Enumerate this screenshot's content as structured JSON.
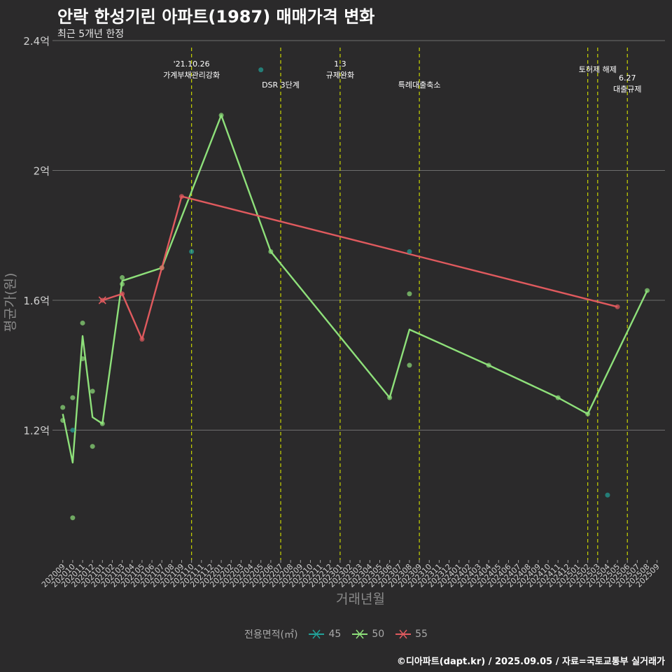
{
  "title": "안락 한성기린 아파트(1987) 매매가격 변화",
  "subtitle": "최근 5개년 한정",
  "caption": "©디아파트(dapt.kr) / 2025.09.05 / 자료=국토교통부 실거래가",
  "colors": {
    "s45": "#22a198",
    "s50": "#8ee07a",
    "s55": "#e05a5e",
    "vline": "#c8d400",
    "grid": "#6e6e6e"
  },
  "chart_data": {
    "type": "line",
    "xlabel": "거래년월",
    "ylabel": "평균가(원)",
    "ylim": [
      0.8,
      2.4
    ],
    "y_ticks": [
      {
        "value": 1.2,
        "label": "1.2억"
      },
      {
        "value": 1.6,
        "label": "1.6억"
      },
      {
        "value": 2.0,
        "label": "2억"
      },
      {
        "value": 2.4,
        "label": "2.4억"
      }
    ],
    "x_categories": [
      "202009",
      "202010",
      "202011",
      "202012",
      "202101",
      "202102",
      "202103",
      "202104",
      "202105",
      "202106",
      "202107",
      "202108",
      "202109",
      "202110",
      "202111",
      "202112",
      "202201",
      "202202",
      "202203",
      "202204",
      "202205",
      "202206",
      "202207",
      "202208",
      "202209",
      "202210",
      "202211",
      "202212",
      "202301",
      "202302",
      "202303",
      "202304",
      "202305",
      "202306",
      "202307",
      "202308",
      "202309",
      "202310",
      "202311",
      "202312",
      "202401",
      "202402",
      "202403",
      "202404",
      "202405",
      "202406",
      "202407",
      "202408",
      "202409",
      "202410",
      "202411",
      "202412",
      "202501",
      "202502",
      "202503",
      "202504",
      "202505",
      "202506",
      "202507",
      "202508",
      "202509"
    ],
    "legend_title": "전용면적(㎡)",
    "series": [
      {
        "name": "45",
        "color_key": "s45",
        "line": [],
        "points": [
          [
            "202010",
            1.2
          ],
          [
            "202110",
            1.75
          ],
          [
            "202205",
            2.31
          ],
          [
            "202308",
            1.75
          ],
          [
            "202504",
            1.0
          ]
        ]
      },
      {
        "name": "50",
        "color_key": "s50",
        "line": [
          [
            "202009",
            1.25
          ],
          [
            "202010",
            1.1
          ],
          [
            "202011",
            1.49
          ],
          [
            "202012",
            1.24
          ],
          [
            "202101",
            1.22
          ],
          [
            "202103",
            1.66
          ],
          [
            "202107",
            1.7
          ],
          [
            "202201",
            2.17
          ],
          [
            "202206",
            1.75
          ],
          [
            "202306",
            1.3
          ],
          [
            "202308",
            1.51
          ],
          [
            "202404",
            1.4
          ],
          [
            "202411",
            1.3
          ],
          [
            "202502",
            1.25
          ],
          [
            "202508",
            1.63
          ]
        ],
        "points": [
          [
            "202009",
            1.27
          ],
          [
            "202009",
            1.23
          ],
          [
            "202010",
            1.3
          ],
          [
            "202010",
            0.93
          ],
          [
            "202011",
            1.53
          ],
          [
            "202011",
            1.42
          ],
          [
            "202012",
            1.32
          ],
          [
            "202012",
            1.15
          ],
          [
            "202101",
            1.22
          ],
          [
            "202103",
            1.67
          ],
          [
            "202103",
            1.65
          ],
          [
            "202107",
            1.7
          ],
          [
            "202201",
            2.17
          ],
          [
            "202206",
            1.75
          ],
          [
            "202306",
            1.3
          ],
          [
            "202308",
            1.62
          ],
          [
            "202308",
            1.4
          ],
          [
            "202404",
            1.4
          ],
          [
            "202411",
            1.3
          ],
          [
            "202502",
            1.25
          ],
          [
            "202508",
            1.63
          ]
        ]
      },
      {
        "name": "55",
        "color_key": "s55",
        "line": [
          [
            "202101",
            1.6
          ],
          [
            "202103",
            1.62
          ],
          [
            "202105",
            1.48
          ],
          [
            "202107",
            1.7
          ],
          [
            "202109",
            1.92
          ],
          [
            "202505",
            1.58
          ]
        ],
        "points": [
          [
            "202101",
            1.6
          ],
          [
            "202103",
            1.62
          ],
          [
            "202105",
            1.48
          ],
          [
            "202107",
            1.7
          ],
          [
            "202109",
            1.92
          ],
          [
            "202505",
            1.58
          ]
        ]
      }
    ],
    "annotations": [
      {
        "x": "202110",
        "lines": [
          "'21.10.26",
          "가계부채관리강화"
        ]
      },
      {
        "x": "202207",
        "lines": [
          "DSR 3단계"
        ]
      },
      {
        "x": "202301",
        "lines": [
          "1.3",
          "규제완화"
        ]
      },
      {
        "x": "202309",
        "lines": [
          "특례대출축소"
        ]
      },
      {
        "x": "202502",
        "lines": []
      },
      {
        "x": "202503",
        "lines": [
          "토허제 해제"
        ]
      },
      {
        "x": "202506",
        "lines": [
          "6.27",
          "대출규제"
        ]
      }
    ]
  }
}
